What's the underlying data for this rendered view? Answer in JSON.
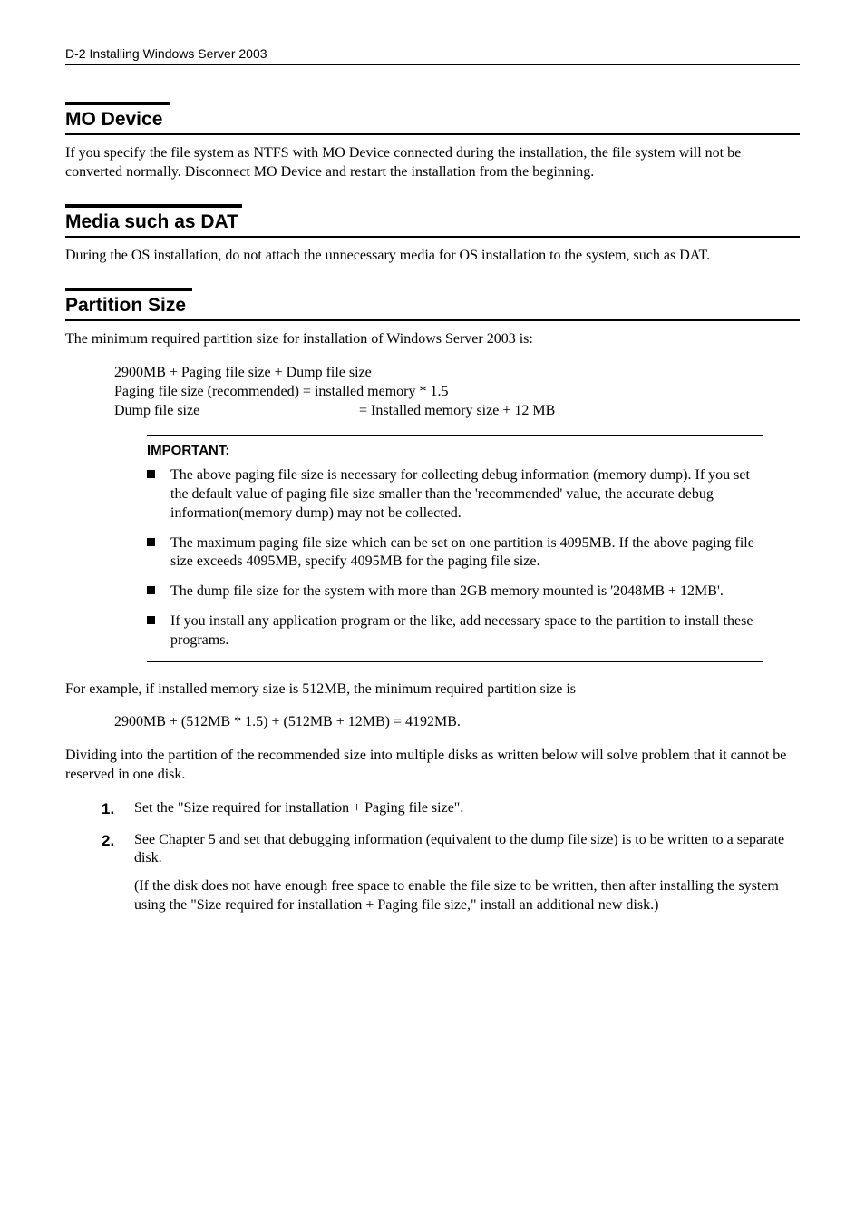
{
  "header": {
    "text": "D-2   Installing Windows Server 2003"
  },
  "sections": {
    "mo": {
      "title": "MO Device",
      "body": "If you specify the file system as NTFS with MO Device connected during the installation, the file system will not be converted normally.   Disconnect MO Device and restart the installation from the beginning."
    },
    "media": {
      "title": "Media such as DAT",
      "body": "During the OS installation, do not attach the unnecessary media for OS installation to the system, such as DAT."
    },
    "partition": {
      "title": "Partition Size",
      "intro": "The minimum required partition size for installation of Windows Server 2003 is:",
      "calc_line1": "2900MB + Paging file size + Dump file size",
      "calc_line2": "Paging file size (recommended) = installed memory * 1.5",
      "calc_line3_l": "Dump file size",
      "calc_line3_r": "= Installed memory size + 12 MB",
      "important_label": "IMPORTANT:",
      "important_items": [
        "The above paging file size is necessary for collecting debug information (memory dump).   If you set the default value of paging file size smaller than the 'recommended' value, the accurate debug information(memory dump) may not be collected.",
        "The maximum paging file size which can be set on one partition is 4095MB. If the above paging file size exceeds 4095MB, specify 4095MB for the paging file size.",
        "The dump file size for the system with more than 2GB memory mounted is '2048MB + 12MB'.",
        "If you install any application program or the like, add necessary space to the partition to install these programs."
      ],
      "example_p": "For example, if installed memory size is 512MB, the minimum required partition size is",
      "example_calc": "2900MB + (512MB * 1.5) + (512MB + 12MB) = 4192MB.",
      "dividing_p": "Dividing into the partition of the recommended size into multiple disks as written below will solve problem that it cannot be reserved in one disk.",
      "steps": [
        {
          "num": "1.",
          "text": "Set the \"Size required for installation + Paging file size\"."
        },
        {
          "num": "2.",
          "text": "See Chapter 5 and set that debugging information (equivalent to the dump file size) is to be written to a separate disk.",
          "sub": "(If the disk does not have enough free space to enable the file size to be written, then after installing the system using the \"Size required for installation + Paging file size,\" install an additional new disk.)"
        }
      ]
    }
  }
}
